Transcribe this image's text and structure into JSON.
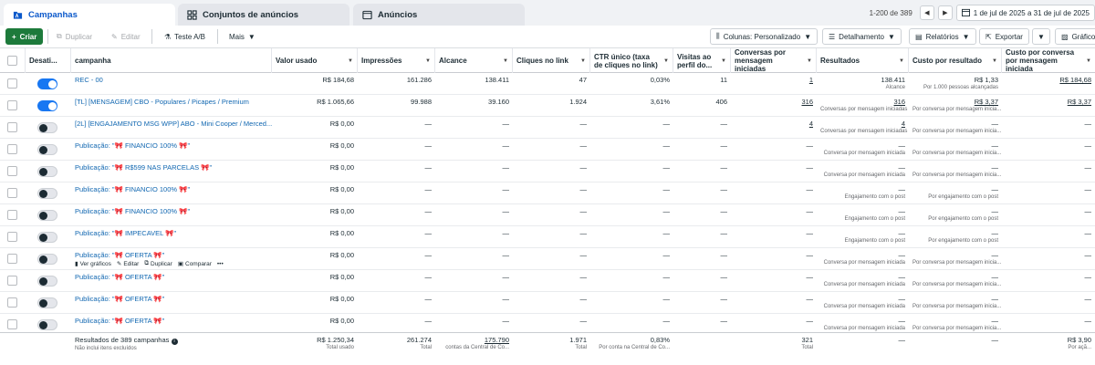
{
  "tabs": [
    {
      "label": "Campanhas",
      "icon": "folder-icon"
    },
    {
      "label": "Conjuntos de anúncios",
      "icon": "grid-icon"
    },
    {
      "label": "Anúncios",
      "icon": "ad-icon"
    }
  ],
  "pagination": {
    "range": "1-200 de 389",
    "prev": "◀",
    "next": "▶"
  },
  "date_range": "1 de jul de 2025 a 31 de jul de 2025",
  "toolbar": {
    "create": "Criar",
    "duplicate": "Duplicar",
    "edit": "Editar",
    "ab_test": "Teste A/B",
    "more": "Mais",
    "columns": "Colunas: Personalizado",
    "breakdown": "Detalhamento",
    "reports": "Relatórios",
    "export": "Exportar",
    "charts": "Gráficos"
  },
  "columns": {
    "toggle": "Desati...",
    "name": "campanha",
    "spend": "Valor usado",
    "impressions": "Impressões",
    "reach": "Alcance",
    "link_clicks": "Cliques no link",
    "ctr": "CTR único (taxa de cliques no link)",
    "profile_visits": "Visitas ao perfil do...",
    "conversations": "Conversas por mensagem iniciadas",
    "results": "Resultados",
    "cost_per_result": "Custo por resultado",
    "cost_per_conversation": "Custo por conversa por mensagem iniciada"
  },
  "rows": [
    {
      "on": true,
      "name": "REC - 00",
      "spend": "R$ 184,68",
      "impressions": "161.286",
      "reach": "138.411",
      "clicks": "47",
      "ctr": "0,03%",
      "visits": "11",
      "conv": "1",
      "conv_u": true,
      "results": "138.411",
      "results_sub": "Alcance",
      "cpr": "R$ 1,33",
      "cpr_sub": "Por 1.000 pessoas alcançadas",
      "cpc": "R$ 184,68",
      "cpc_u": true
    },
    {
      "on": true,
      "name": "[TL] [MENSAGEM] CBO - Populares / Picapes / Premium",
      "spend": "R$ 1.065,66",
      "impressions": "99.988",
      "reach": "39.160",
      "clicks": "1.924",
      "ctr": "3,61%",
      "visits": "406",
      "conv": "316",
      "conv_u": true,
      "results": "316",
      "results_u": true,
      "results_sub": "Conversas por mensagem iniciadas",
      "cpr": "R$ 3,37",
      "cpr_u": true,
      "cpr_sub": "Por conversa por mensagem inicia...",
      "cpc": "R$ 3,37",
      "cpc_u": true
    },
    {
      "on": false,
      "name": "[2L] [ENGAJAMENTO MSG WPP] ABO - Mini Cooper / Merced...",
      "spend": "R$ 0,00",
      "impressions": "—",
      "reach": "—",
      "clicks": "—",
      "ctr": "—",
      "visits": "—",
      "conv": "4",
      "conv_u": true,
      "results": "4",
      "results_u": true,
      "results_sub": "Conversas por mensagem iniciadas",
      "cpr": "—",
      "cpr_sub": "Por conversa por mensagem inicia...",
      "cpc": "—"
    },
    {
      "on": false,
      "name": "Publicação: \"🎀 FINANCIO 100% 🎀\"",
      "spend": "R$ 0,00",
      "impressions": "—",
      "reach": "—",
      "clicks": "—",
      "ctr": "—",
      "visits": "—",
      "conv": "—",
      "results": "—",
      "results_sub": "Conversa por mensagem iniciada",
      "cpr": "—",
      "cpr_sub": "Por conversa por mensagem inicia...",
      "cpc": "—"
    },
    {
      "on": false,
      "name": "Publicação: \"🎀 R$599 NAS PARCELAS 🎀\"",
      "spend": "R$ 0,00",
      "impressions": "—",
      "reach": "—",
      "clicks": "—",
      "ctr": "—",
      "visits": "—",
      "conv": "—",
      "results": "—",
      "results_sub": "Conversa por mensagem iniciada",
      "cpr": "—",
      "cpr_sub": "Por conversa por mensagem inicia...",
      "cpc": "—"
    },
    {
      "on": false,
      "name": "Publicação: \"🎀 FINANCIO 100% 🎀\"",
      "spend": "R$ 0,00",
      "impressions": "—",
      "reach": "—",
      "clicks": "—",
      "ctr": "—",
      "visits": "—",
      "conv": "—",
      "results": "—",
      "results_sub": "Engajamento com o post",
      "cpr": "—",
      "cpr_sub": "Por engajamento com o post",
      "cpc": "—"
    },
    {
      "on": false,
      "name": "Publicação: \"🎀 FINANCIO 100% 🎀\"",
      "spend": "R$ 0,00",
      "impressions": "—",
      "reach": "—",
      "clicks": "—",
      "ctr": "—",
      "visits": "—",
      "conv": "—",
      "results": "—",
      "results_sub": "Engajamento com o post",
      "cpr": "—",
      "cpr_sub": "Por engajamento com o post",
      "cpc": "—"
    },
    {
      "on": false,
      "name": "Publicação: \"🎀 IMPECAVEL 🎀\"",
      "spend": "R$ 0,00",
      "impressions": "—",
      "reach": "—",
      "clicks": "—",
      "ctr": "—",
      "visits": "—",
      "conv": "—",
      "results": "—",
      "results_sub": "Engajamento com o post",
      "cpr": "—",
      "cpr_sub": "Por engajamento com o post",
      "cpc": "—"
    },
    {
      "on": false,
      "name": "Publicação: \"🎀 OFERTA 🎀\"",
      "spend": "R$ 0,00",
      "impressions": "—",
      "reach": "—",
      "clicks": "—",
      "ctr": "—",
      "visits": "—",
      "conv": "—",
      "results": "—",
      "results_sub": "Conversa por mensagem iniciada",
      "cpr": "—",
      "cpr_sub": "Por conversa por mensagem inicia...",
      "cpc": "—",
      "hover": true
    },
    {
      "on": false,
      "name": "Publicação: \"🎀 OFERTA 🎀\"",
      "spend": "R$ 0,00",
      "impressions": "—",
      "reach": "—",
      "clicks": "—",
      "ctr": "—",
      "visits": "—",
      "conv": "—",
      "results": "—",
      "results_sub": "Conversa por mensagem iniciada",
      "cpr": "—",
      "cpr_sub": "Por conversa por mensagem inicia...",
      "cpc": "—"
    },
    {
      "on": false,
      "name": "Publicação: \"🎀 OFERTA 🎀\"",
      "spend": "R$ 0,00",
      "impressions": "—",
      "reach": "—",
      "clicks": "—",
      "ctr": "—",
      "visits": "—",
      "conv": "—",
      "results": "—",
      "results_sub": "Conversa por mensagem iniciada",
      "cpr": "—",
      "cpr_sub": "Por conversa por mensagem inicia...",
      "cpc": "—"
    },
    {
      "on": false,
      "name": "Publicação: \"🎀 OFERTA 🎀\"",
      "spend": "R$ 0,00",
      "impressions": "—",
      "reach": "—",
      "clicks": "—",
      "ctr": "—",
      "visits": "—",
      "conv": "—",
      "results": "—",
      "results_sub": "Conversa por mensagem iniciada",
      "cpr": "—",
      "cpr_sub": "Por conversa por mensagem inicia...",
      "cpc": "—"
    }
  ],
  "row_actions": {
    "charts": "Ver gráficos",
    "edit": "Editar",
    "duplicate": "Duplicar",
    "compare": "Comparar",
    "more": "•••"
  },
  "totals": {
    "label": "Resultados de 389 campanhas",
    "sub": "Não inclui itens excluídos",
    "spend": "R$ 1.250,34",
    "spend_sub": "Total usado",
    "impressions": "261.274",
    "impressions_sub": "Total",
    "reach": "175.790",
    "reach_sub": "contas da Central de Co...",
    "clicks": "1.971",
    "clicks_sub": "Total",
    "ctr": "0,83%",
    "ctr_sub": "Por conta na Central de Co...",
    "visits": "",
    "conv": "321",
    "conv_sub": "Total",
    "results": "—",
    "cpr": "—",
    "cpc": "R$ 3,90",
    "cpc_sub": "Por açã..."
  },
  "colors": {
    "accent": "#1877f2",
    "create": "#1d7a3b",
    "link": "#1167b1"
  }
}
